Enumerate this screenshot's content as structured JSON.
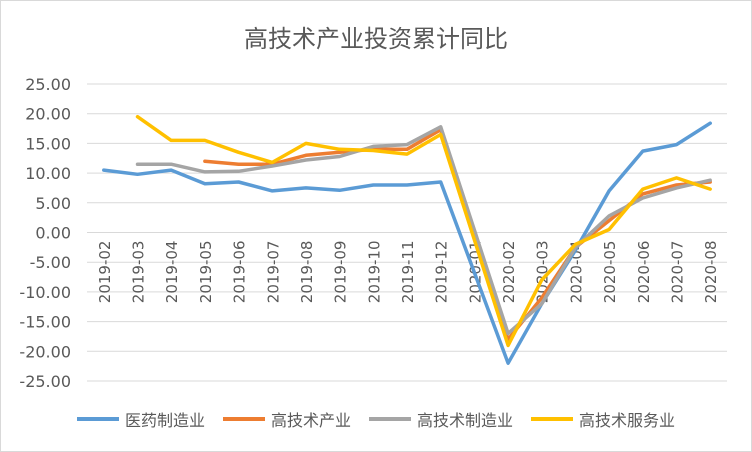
{
  "chart_data": {
    "type": "line",
    "title": "高技术产业投资累计同比",
    "categories": [
      "2019-02",
      "2019-03",
      "2019-04",
      "2019-05",
      "2019-06",
      "2019-07",
      "2019-08",
      "2019-09",
      "2019-10",
      "2019-11",
      "2019-12",
      "2020-01",
      "2020-02",
      "2020-03",
      "2020-04",
      "2020-05",
      "2020-06",
      "2020-07",
      "2020-08"
    ],
    "y_ticks": [
      "25.00",
      "20.00",
      "15.00",
      "10.00",
      "5.00",
      "0.00",
      "-5.00",
      "-10.00",
      "-15.00",
      "-20.00",
      "-25.00"
    ],
    "ylim": [
      -25,
      25
    ],
    "grid": true,
    "legend_position": "bottom",
    "series": [
      {
        "name": "医药制造业",
        "color": "#5B9BD5",
        "values": [
          10.5,
          9.8,
          10.5,
          8.2,
          8.5,
          7.0,
          7.5,
          7.1,
          8.0,
          8.0,
          8.5,
          null,
          -22.0,
          -12.0,
          -3.0,
          7.0,
          13.7,
          14.8,
          18.4
        ]
      },
      {
        "name": "高技术产业",
        "color": "#ED7D31",
        "values": [
          null,
          null,
          null,
          12.0,
          11.5,
          11.5,
          13.0,
          13.5,
          14.0,
          14.0,
          17.3,
          null,
          -18.0,
          -11.0,
          -2.5,
          2.0,
          6.5,
          8.0,
          8.5
        ]
      },
      {
        "name": "高技术制造业",
        "color": "#A5A5A5",
        "values": [
          null,
          11.5,
          11.5,
          10.2,
          10.3,
          11.2,
          12.2,
          12.8,
          14.5,
          14.8,
          17.8,
          null,
          -17.0,
          -12.0,
          -2.5,
          2.8,
          5.8,
          7.5,
          8.8
        ]
      },
      {
        "name": "高技术服务业",
        "color": "#FFC000",
        "values": [
          null,
          19.5,
          15.5,
          15.5,
          13.5,
          11.8,
          15.0,
          14.0,
          13.8,
          13.2,
          16.5,
          null,
          -19.0,
          -8.0,
          -2.0,
          0.5,
          7.3,
          9.2,
          7.3
        ]
      }
    ]
  }
}
